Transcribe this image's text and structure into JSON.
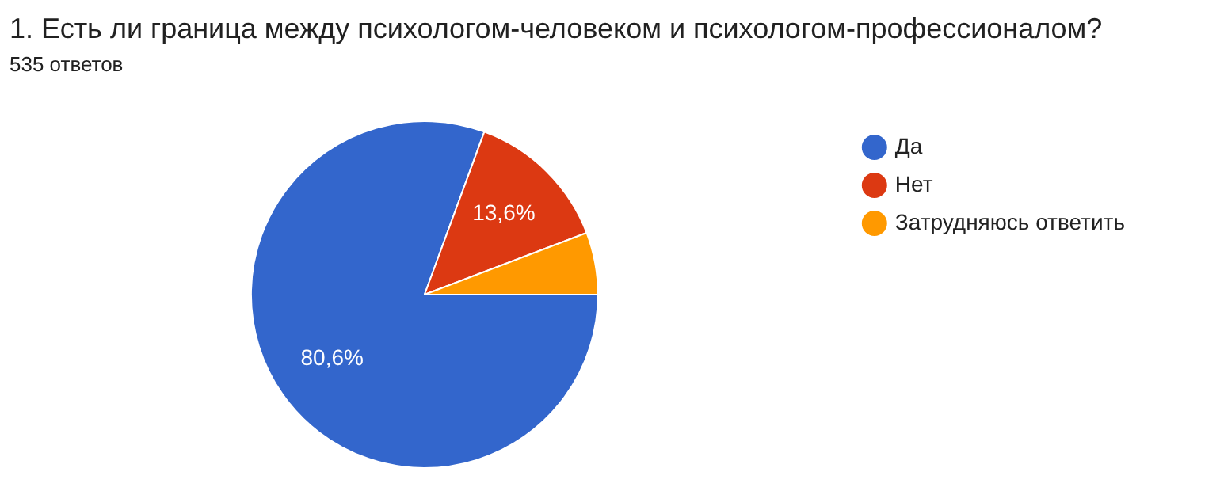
{
  "chart_data": {
    "type": "pie",
    "title": "1. Есть ли граница между психологом-человеком и психологом-профессионалом?",
    "subtitle": "535 ответов",
    "categories": [
      "Да",
      "Нет",
      "Затрудняюсь ответить"
    ],
    "values": [
      80.6,
      13.6,
      5.8
    ],
    "value_labels": [
      "80,6%",
      "13,6%",
      null
    ],
    "colors": [
      "#3366cc",
      "#dc3912",
      "#ff9900"
    ],
    "legend": "right"
  }
}
